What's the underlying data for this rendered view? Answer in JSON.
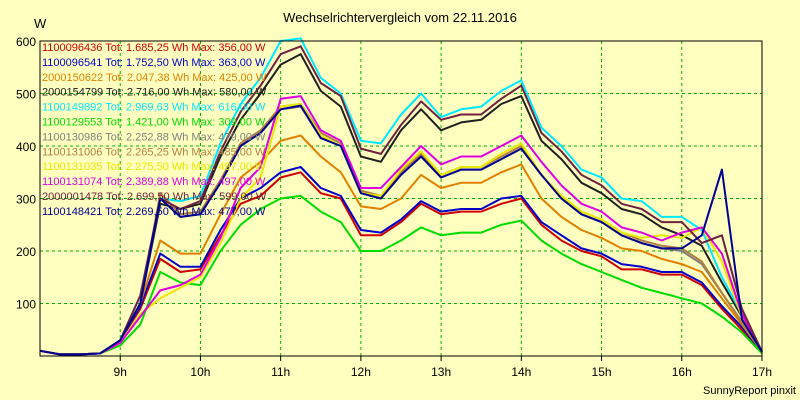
{
  "chart_data": {
    "type": "line",
    "title": "Wechselrichtervergleich vom 22.11.2016",
    "ylabel": "W",
    "ylim": [
      0,
      600
    ],
    "xlim": [
      8.0,
      17.0
    ],
    "yticks": [
      100,
      200,
      300,
      400,
      500,
      600
    ],
    "xticks": [
      {
        "value": 9,
        "label": "9h"
      },
      {
        "value": 10,
        "label": "10h"
      },
      {
        "value": 11,
        "label": "11h"
      },
      {
        "value": 12,
        "label": "12h"
      },
      {
        "value": 13,
        "label": "13h"
      },
      {
        "value": 14,
        "label": "14h"
      },
      {
        "value": 15,
        "label": "15h"
      },
      {
        "value": 16,
        "label": "16h"
      },
      {
        "value": 17,
        "label": "17h"
      }
    ],
    "grid": true,
    "legend_position": "top-left",
    "x": [
      8.0,
      8.25,
      8.5,
      8.75,
      9.0,
      9.25,
      9.5,
      9.75,
      10.0,
      10.25,
      10.5,
      10.75,
      11.0,
      11.25,
      11.5,
      11.75,
      12.0,
      12.25,
      12.5,
      12.75,
      13.0,
      13.25,
      13.5,
      13.75,
      14.0,
      14.25,
      14.5,
      14.75,
      15.0,
      15.25,
      15.5,
      15.75,
      16.0,
      16.25,
      16.5,
      16.75,
      17.0
    ],
    "series": [
      {
        "name": "1100096436 Tot: 1.685,25 Wh Max: 356,00 W",
        "color": "#d00000",
        "values": [
          10,
          3,
          3,
          5,
          30,
          90,
          185,
          160,
          165,
          230,
          290,
          305,
          340,
          350,
          310,
          300,
          230,
          230,
          255,
          290,
          270,
          275,
          275,
          290,
          300,
          250,
          220,
          200,
          190,
          165,
          165,
          155,
          155,
          135,
          90,
          50,
          8
        ]
      },
      {
        "name": "1100096541 Tot: 1.752,50 Wh Max: 363,00 W",
        "color": "#0000c8",
        "values": [
          10,
          3,
          3,
          5,
          30,
          95,
          195,
          170,
          170,
          240,
          300,
          320,
          350,
          360,
          320,
          305,
          240,
          235,
          260,
          295,
          275,
          280,
          280,
          300,
          305,
          255,
          230,
          205,
          195,
          175,
          170,
          160,
          160,
          140,
          95,
          55,
          8
        ]
      },
      {
        "name": "2000150622 Tot: 2.047,38 Wh Max: 425,00 W",
        "color": "#e08000",
        "values": [
          10,
          3,
          3,
          5,
          30,
          100,
          220,
          195,
          195,
          270,
          340,
          370,
          410,
          420,
          380,
          350,
          285,
          280,
          300,
          345,
          320,
          330,
          330,
          350,
          365,
          300,
          265,
          240,
          225,
          205,
          200,
          185,
          175,
          160,
          110,
          60,
          8
        ]
      },
      {
        "name": "2000154799 Tot: 2.716,00 Wh Max: 580,00 W",
        "color": "#202020",
        "values": [
          10,
          3,
          3,
          5,
          30,
          100,
          290,
          280,
          290,
          380,
          450,
          500,
          555,
          575,
          505,
          475,
          380,
          370,
          430,
          470,
          430,
          445,
          450,
          480,
          495,
          410,
          375,
          330,
          310,
          280,
          270,
          245,
          230,
          210,
          140,
          75,
          8
        ]
      },
      {
        "name": "1100149892 Tot: 2.969,63 Wh Max: 616,00 W",
        "color": "#00e8ff",
        "values": [
          10,
          3,
          3,
          5,
          30,
          115,
          300,
          295,
          305,
          405,
          480,
          530,
          600,
          605,
          530,
          500,
          410,
          405,
          460,
          500,
          455,
          470,
          475,
          505,
          525,
          435,
          400,
          355,
          340,
          300,
          295,
          265,
          265,
          240,
          150,
          80,
          8
        ]
      },
      {
        "name": "1100129553 Tot: 1.421,00 Wh Max: 309,00 W",
        "color": "#00dc00",
        "values": [
          10,
          3,
          3,
          5,
          20,
          60,
          160,
          140,
          135,
          200,
          250,
          280,
          300,
          305,
          275,
          255,
          200,
          200,
          220,
          245,
          230,
          235,
          235,
          250,
          258,
          220,
          195,
          175,
          160,
          145,
          130,
          120,
          110,
          100,
          75,
          45,
          5
        ]
      },
      {
        "name": "1100130986 Tot: 2.252,88 Wh Max: 479,00 W",
        "color": "#808080",
        "values": [
          10,
          3,
          3,
          5,
          30,
          100,
          300,
          265,
          270,
          330,
          400,
          425,
          470,
          475,
          415,
          400,
          310,
          300,
          345,
          380,
          340,
          355,
          355,
          375,
          395,
          345,
          300,
          270,
          255,
          230,
          215,
          205,
          200,
          175,
          120,
          65,
          8
        ]
      },
      {
        "name": "1100131006 Tot: 2.265,25 Wh Max: 485,00 W",
        "color": "#b08040",
        "values": [
          10,
          3,
          3,
          5,
          30,
          100,
          310,
          270,
          275,
          335,
          405,
          430,
          475,
          480,
          425,
          405,
          315,
          305,
          350,
          385,
          345,
          360,
          360,
          380,
          400,
          345,
          305,
          275,
          260,
          235,
          220,
          210,
          205,
          180,
          120,
          65,
          8
        ]
      },
      {
        "name": "1100131035 Tot: 2.275,50 Wh Max: 497,00 W",
        "color": "#e8e800",
        "values": [
          10,
          3,
          3,
          5,
          25,
          80,
          110,
          130,
          150,
          215,
          300,
          340,
          475,
          480,
          420,
          400,
          310,
          305,
          355,
          390,
          345,
          360,
          360,
          385,
          405,
          345,
          305,
          275,
          260,
          235,
          225,
          230,
          225,
          245,
          180,
          75,
          8
        ]
      },
      {
        "name": "1100131074 Tot: 2.389,88 Wh Max: 497,00 W",
        "color": "#e000e0",
        "values": [
          10,
          3,
          3,
          5,
          25,
          75,
          125,
          135,
          155,
          225,
          320,
          360,
          490,
          495,
          430,
          410,
          320,
          320,
          360,
          400,
          365,
          380,
          380,
          400,
          420,
          370,
          325,
          290,
          275,
          245,
          235,
          220,
          235,
          245,
          195,
          80,
          8
        ]
      },
      {
        "name": "2000001478 Tot: 2.699,50 Wh Max: 599,00 W",
        "color": "#702040",
        "values": [
          10,
          3,
          3,
          5,
          30,
          115,
          300,
          280,
          295,
          390,
          465,
          515,
          575,
          590,
          520,
          495,
          395,
          385,
          440,
          485,
          450,
          460,
          460,
          490,
          515,
          425,
          390,
          345,
          325,
          290,
          280,
          255,
          255,
          215,
          230,
          90,
          8
        ]
      },
      {
        "name": "1100148421 Tot: 2.269,50 Wh Max: 477,00 W",
        "color": "#000090",
        "values": [
          10,
          3,
          3,
          5,
          30,
          100,
          300,
          265,
          270,
          330,
          400,
          425,
          470,
          477,
          415,
          400,
          310,
          300,
          345,
          380,
          340,
          355,
          355,
          375,
          395,
          345,
          300,
          270,
          255,
          230,
          215,
          205,
          205,
          230,
          355,
          70,
          8
        ]
      }
    ]
  },
  "footer": "SunnyReport pinxit"
}
